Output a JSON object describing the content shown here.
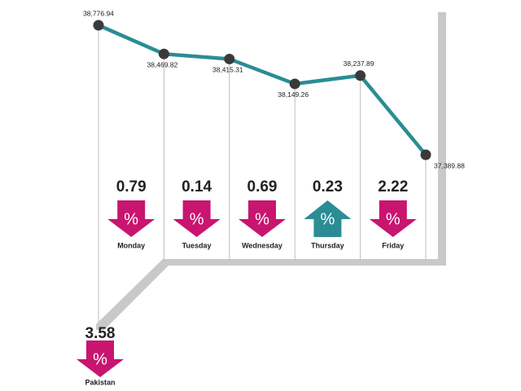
{
  "chart_data": {
    "type": "line",
    "categories": [
      null,
      null,
      null,
      null,
      null,
      null
    ],
    "values": [
      38776.94,
      38469.82,
      38415.31,
      38149.26,
      38237.89,
      37389.88
    ],
    "value_labels": [
      "38,776.94",
      "38,469.82",
      "38,415.31",
      "38,149.26",
      "38,237.89",
      "37,389.88"
    ],
    "color": "#2b8c94",
    "daily_change": {
      "categories": [
        "Monday",
        "Tuesday",
        "Wednesday",
        "Thursday",
        "Friday"
      ],
      "values": [
        0.79,
        0.14,
        0.69,
        0.23,
        2.22
      ],
      "direction": [
        "down",
        "down",
        "down",
        "up",
        "down"
      ],
      "unit": "%"
    },
    "weekly_change": {
      "category": "Pakistan",
      "value": 3.58,
      "direction": "down",
      "unit": "%"
    }
  }
}
